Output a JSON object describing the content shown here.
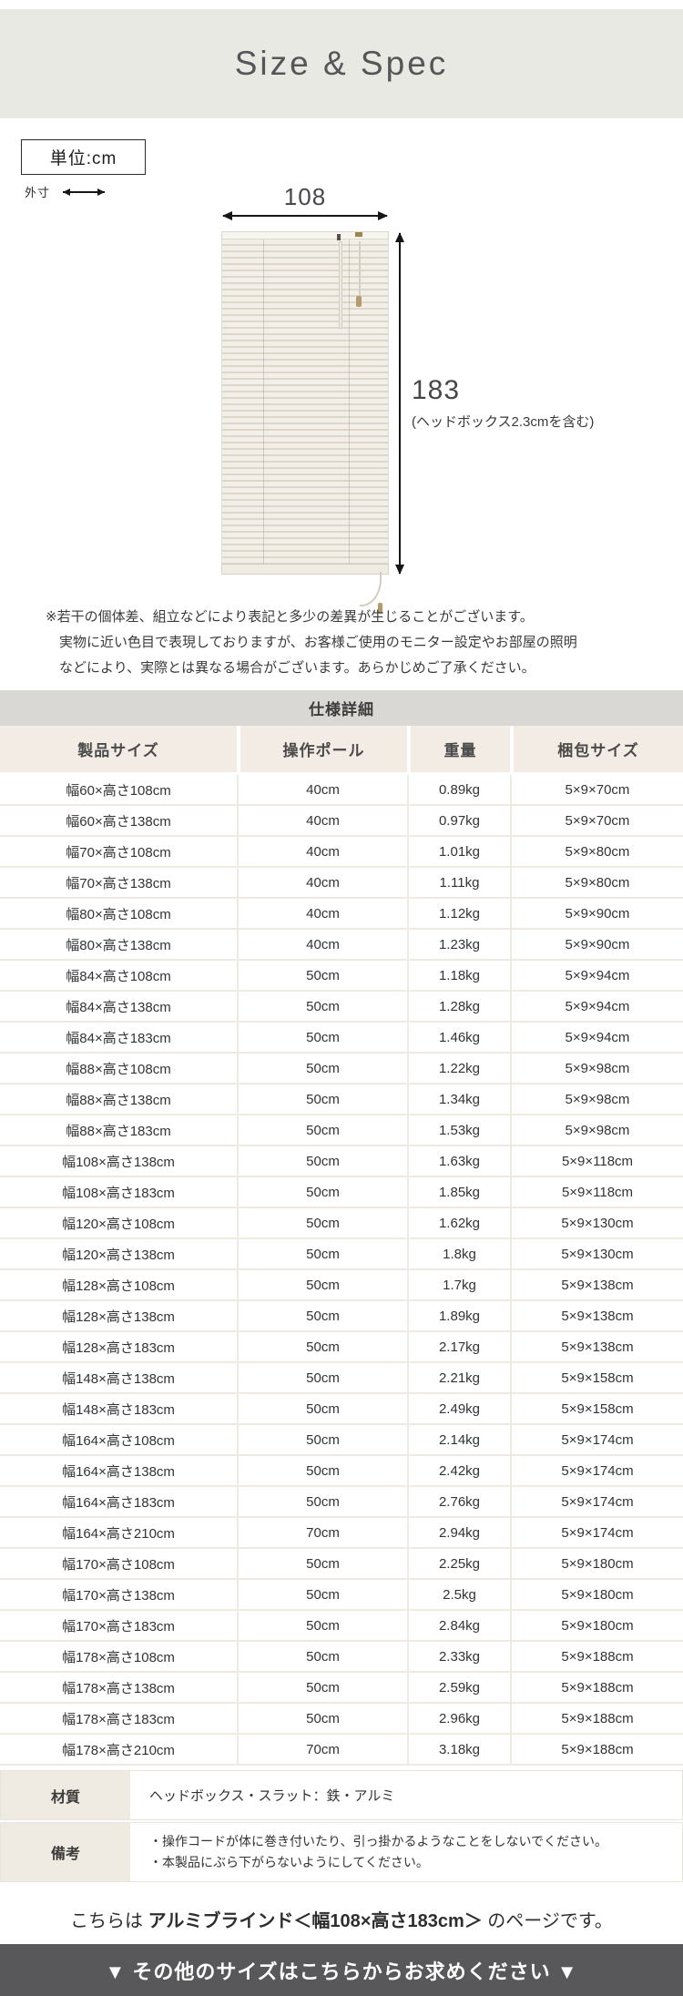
{
  "header": {
    "title": "Size & Spec"
  },
  "unit_note": {
    "label": "単位:cm"
  },
  "legend": {
    "outer_dimension_label": "外寸"
  },
  "diagram": {
    "width_value": "108",
    "height_value": "183",
    "height_note": "(ヘッドボックス2.3cmを含む)"
  },
  "disclaimer": {
    "line1": "※若干の個体差、組立などにより表記と多少の差異が生じることがございます。",
    "line2": "実物に近い色目で表現しておりますが、お客様ご使用のモニター設定やお部屋の照明",
    "line3": "などにより、実際とは異なる場合がございます。あらかじめご了承ください。"
  },
  "spec_table": {
    "title": "仕様詳細",
    "columns": [
      "製品サイズ",
      "操作ポール",
      "重量",
      "梱包サイズ"
    ],
    "rows": [
      [
        "幅60×高さ108cm",
        "40cm",
        "0.89kg",
        "5×9×70cm"
      ],
      [
        "幅60×高さ138cm",
        "40cm",
        "0.97kg",
        "5×9×70cm"
      ],
      [
        "幅70×高さ108cm",
        "40cm",
        "1.01kg",
        "5×9×80cm"
      ],
      [
        "幅70×高さ138cm",
        "40cm",
        "1.11kg",
        "5×9×80cm"
      ],
      [
        "幅80×高さ108cm",
        "40cm",
        "1.12kg",
        "5×9×90cm"
      ],
      [
        "幅80×高さ138cm",
        "40cm",
        "1.23kg",
        "5×9×90cm"
      ],
      [
        "幅84×高さ108cm",
        "50cm",
        "1.18kg",
        "5×9×94cm"
      ],
      [
        "幅84×高さ138cm",
        "50cm",
        "1.28kg",
        "5×9×94cm"
      ],
      [
        "幅84×高さ183cm",
        "50cm",
        "1.46kg",
        "5×9×94cm"
      ],
      [
        "幅88×高さ108cm",
        "50cm",
        "1.22kg",
        "5×9×98cm"
      ],
      [
        "幅88×高さ138cm",
        "50cm",
        "1.34kg",
        "5×9×98cm"
      ],
      [
        "幅88×高さ183cm",
        "50cm",
        "1.53kg",
        "5×9×98cm"
      ],
      [
        "幅108×高さ138cm",
        "50cm",
        "1.63kg",
        "5×9×118cm"
      ],
      [
        "幅108×高さ183cm",
        "50cm",
        "1.85kg",
        "5×9×118cm"
      ],
      [
        "幅120×高さ108cm",
        "50cm",
        "1.62kg",
        "5×9×130cm"
      ],
      [
        "幅120×高さ138cm",
        "50cm",
        "1.8kg",
        "5×9×130cm"
      ],
      [
        "幅128×高さ108cm",
        "50cm",
        "1.7kg",
        "5×9×138cm"
      ],
      [
        "幅128×高さ138cm",
        "50cm",
        "1.89kg",
        "5×9×138cm"
      ],
      [
        "幅128×高さ183cm",
        "50cm",
        "2.17kg",
        "5×9×138cm"
      ],
      [
        "幅148×高さ138cm",
        "50cm",
        "2.21kg",
        "5×9×158cm"
      ],
      [
        "幅148×高さ183cm",
        "50cm",
        "2.49kg",
        "5×9×158cm"
      ],
      [
        "幅164×高さ108cm",
        "50cm",
        "2.14kg",
        "5×9×174cm"
      ],
      [
        "幅164×高さ138cm",
        "50cm",
        "2.42kg",
        "5×9×174cm"
      ],
      [
        "幅164×高さ183cm",
        "50cm",
        "2.76kg",
        "5×9×174cm"
      ],
      [
        "幅164×高さ210cm",
        "70cm",
        "2.94kg",
        "5×9×174cm"
      ],
      [
        "幅170×高さ108cm",
        "50cm",
        "2.25kg",
        "5×9×180cm"
      ],
      [
        "幅170×高さ138cm",
        "50cm",
        "2.5kg",
        "5×9×180cm"
      ],
      [
        "幅170×高さ183cm",
        "50cm",
        "2.84kg",
        "5×9×180cm"
      ],
      [
        "幅178×高さ108cm",
        "50cm",
        "2.33kg",
        "5×9×188cm"
      ],
      [
        "幅178×高さ138cm",
        "50cm",
        "2.59kg",
        "5×9×188cm"
      ],
      [
        "幅178×高さ183cm",
        "50cm",
        "2.96kg",
        "5×9×188cm"
      ],
      [
        "幅178×高さ210cm",
        "70cm",
        "3.18kg",
        "5×9×188cm"
      ]
    ],
    "material": {
      "label": "材質",
      "value": "ヘッドボックス・スラット：鉄・アルミ"
    },
    "notes": {
      "label": "備考",
      "lines": [
        "・操作コードが体に巻き付いたり、引っ掛かるようなことをしないでください。",
        "・本製品にぶら下がらないようにしてください。"
      ]
    }
  },
  "footer": {
    "page_note_prefix": "こちらは ",
    "page_note_bold": "アルミブラインド＜幅108×高さ183cm＞",
    "page_note_suffix": " のページです。",
    "banner_label": "▼ その他のサイズはこちらからお求めください ▼"
  },
  "colors": {
    "band_bg": "#e9e9e3",
    "spec_band_bg": "#d9d8d4",
    "th_bg": "#f2ece4",
    "label_bg": "#f0ebe2",
    "banner_bg": "#58585a",
    "line_col": "#efebe3"
  }
}
